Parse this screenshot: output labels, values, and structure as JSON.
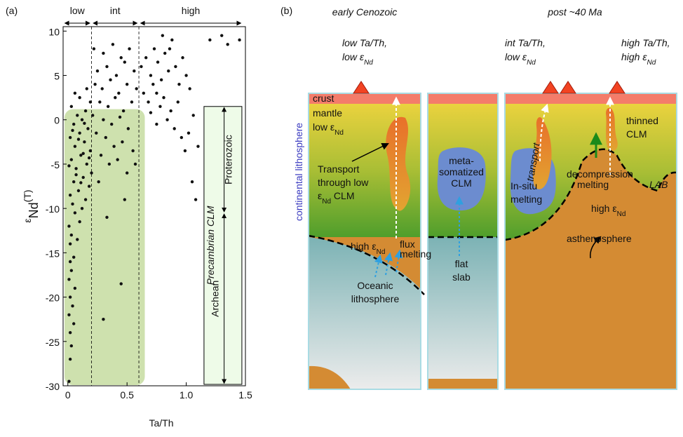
{
  "figure_label_a": "(a)",
  "chart_data": {
    "type": "scatter",
    "x_label": "Ta/Th",
    "y_label": {
      "symbol": "ε",
      "sub": "Nd",
      "suffix": "(T)"
    },
    "x": [
      0.01,
      0.02,
      0.03,
      0.02,
      0.05,
      0.01,
      0.04,
      0.02,
      0.06,
      0.01,
      0.03,
      0.02,
      0.05,
      0.02,
      0.08,
      0.03,
      0.01,
      0.1,
      0.06,
      0.12,
      0.04,
      0.15,
      0.02,
      0.09,
      0.18,
      0.05,
      0.13,
      0.2,
      0.07,
      0.16,
      0.03,
      0.11,
      0.19,
      0.06,
      0.14,
      0.02,
      0.1,
      0.17,
      0.05,
      0.12,
      0.08,
      0.15,
      0.03,
      0.19,
      0.1,
      0.06,
      0.16,
      0.09,
      0.13,
      0.07,
      0.18,
      0.04,
      0.11,
      0.14,
      0.01,
      0.22,
      0.3,
      0.38,
      0.45,
      0.52,
      0.25,
      0.33,
      0.41,
      0.48,
      0.56,
      0.23,
      0.29,
      0.36,
      0.43,
      0.5,
      0.58,
      0.27,
      0.34,
      0.4,
      0.47,
      0.54,
      0.21,
      0.3,
      0.37,
      0.44,
      0.51,
      0.24,
      0.32,
      0.39,
      0.46,
      0.55,
      0.28,
      0.35,
      0.42,
      0.5,
      0.57,
      0.26,
      0.3,
      0.45,
      0.33,
      0.48,
      0.62,
      0.66,
      0.7,
      0.73,
      0.76,
      0.79,
      0.82,
      0.85,
      0.88,
      0.91,
      0.94,
      0.97,
      1.0,
      1.03,
      0.64,
      0.68,
      0.72,
      0.75,
      0.78,
      0.81,
      0.84,
      0.87,
      0.9,
      0.93,
      0.96,
      0.99,
      1.02,
      1.05,
      1.08,
      1.06,
      0.8,
      0.86,
      1.2,
      1.3,
      1.35,
      1.45,
      1.1,
      0.75,
      0.7
    ],
    "values": [
      -29.5,
      -27,
      -25.5,
      -24,
      -23,
      -22,
      -21,
      -20,
      -19,
      -18,
      -17,
      -16,
      -15.5,
      -14,
      -13.5,
      -13,
      -12,
      -11.5,
      -10.5,
      -10,
      -9.5,
      -9,
      -8.5,
      -8,
      -7.5,
      -7,
      -6.5,
      -6,
      -5.5,
      -5,
      -4.5,
      -4,
      -3.5,
      -3,
      -2.5,
      -2,
      -1.5,
      -1,
      -0.5,
      0,
      0.5,
      1,
      1.5,
      2,
      2.5,
      3,
      3.5,
      -2.2,
      -3.8,
      -6.2,
      -4.3,
      -1.2,
      -7.1,
      -0.4,
      -5.2,
      8,
      7.5,
      8.5,
      7,
      8,
      5.5,
      6,
      5,
      6.5,
      5.5,
      4,
      3.5,
      4.5,
      3,
      4,
      3.5,
      2,
      1.5,
      2.5,
      1,
      2,
      0.5,
      0,
      -0.5,
      0.3,
      -1,
      -1.5,
      -2,
      -3,
      -2.5,
      -3.5,
      -4,
      -5,
      -4.5,
      -6,
      -5,
      -7,
      -22.5,
      -18.5,
      -11,
      -9,
      6,
      7,
      5,
      8,
      6.5,
      4.5,
      7.5,
      5.5,
      9,
      6,
      4,
      7,
      5,
      3.5,
      3,
      2,
      4,
      3,
      1.5,
      2.5,
      0,
      1,
      -1,
      2,
      -2,
      -3.5,
      -1.5,
      -7,
      -9,
      0.5,
      9.5,
      8,
      9,
      9.5,
      8.5,
      9,
      -3,
      -0.5,
      0.8
    ],
    "color": "#111111",
    "xlim": [
      -0.04,
      1.5
    ],
    "ylim": [
      -30,
      10.5
    ],
    "xticks": [
      0,
      0.5,
      {
        "value": 1,
        "label": "1.0"
      },
      1.5
    ],
    "yticks": [
      10,
      5,
      0,
      -5,
      -10,
      -15,
      -20,
      -25,
      -30
    ],
    "boundaries": [
      0.2,
      0.6
    ],
    "regions": [
      "low",
      "int",
      "high"
    ],
    "precambrian": {
      "title": "Precambrian CLM",
      "ages": [
        "Proterozoic",
        "Archean"
      ]
    }
  },
  "diagram": {
    "label": "(b)",
    "columns": [
      "early Cenozoic",
      "post ~40 Ma"
    ],
    "volcano_labels": [
      {
        "line1": "low Ta/Th,",
        "line2": "low ε",
        "sub": "Nd"
      },
      {
        "line1": "int Ta/Th,",
        "line2": "low ε",
        "sub": "Nd"
      },
      {
        "line1": "high Ta/Th,",
        "line2": "high ε",
        "sub": "Nd"
      }
    ],
    "layers": {
      "crust": "crust",
      "mantle": "mantle",
      "mantle_nd": {
        "text": "low ε",
        "sub": "Nd"
      },
      "lithosphere": "continental  lithosphere"
    },
    "early": {
      "transport": [
        "Transport",
        "through low"
      ],
      "transport_nd": {
        "text": "ε",
        "sub": "Nd",
        "suffix": " CLM"
      },
      "high_nd": {
        "text": "high ε",
        "sub": "Nd"
      },
      "flux": [
        "flux",
        "melting"
      ],
      "oceanic": [
        "Oceanic",
        "lithosphere"
      ]
    },
    "slab": {
      "clm": [
        "meta-",
        "somatized",
        "CLM"
      ],
      "flat": [
        "flat",
        "slab"
      ]
    },
    "late": {
      "transport": "transport",
      "insitu": [
        "In-situ",
        "melting"
      ],
      "decompression": [
        "decompression",
        "melting"
      ],
      "thinned": [
        "thinned",
        "CLM"
      ],
      "lab": "LAB",
      "high_nd": {
        "text": "high ε",
        "sub": "Nd"
      },
      "asthenosphere": "asthenosphere"
    }
  }
}
